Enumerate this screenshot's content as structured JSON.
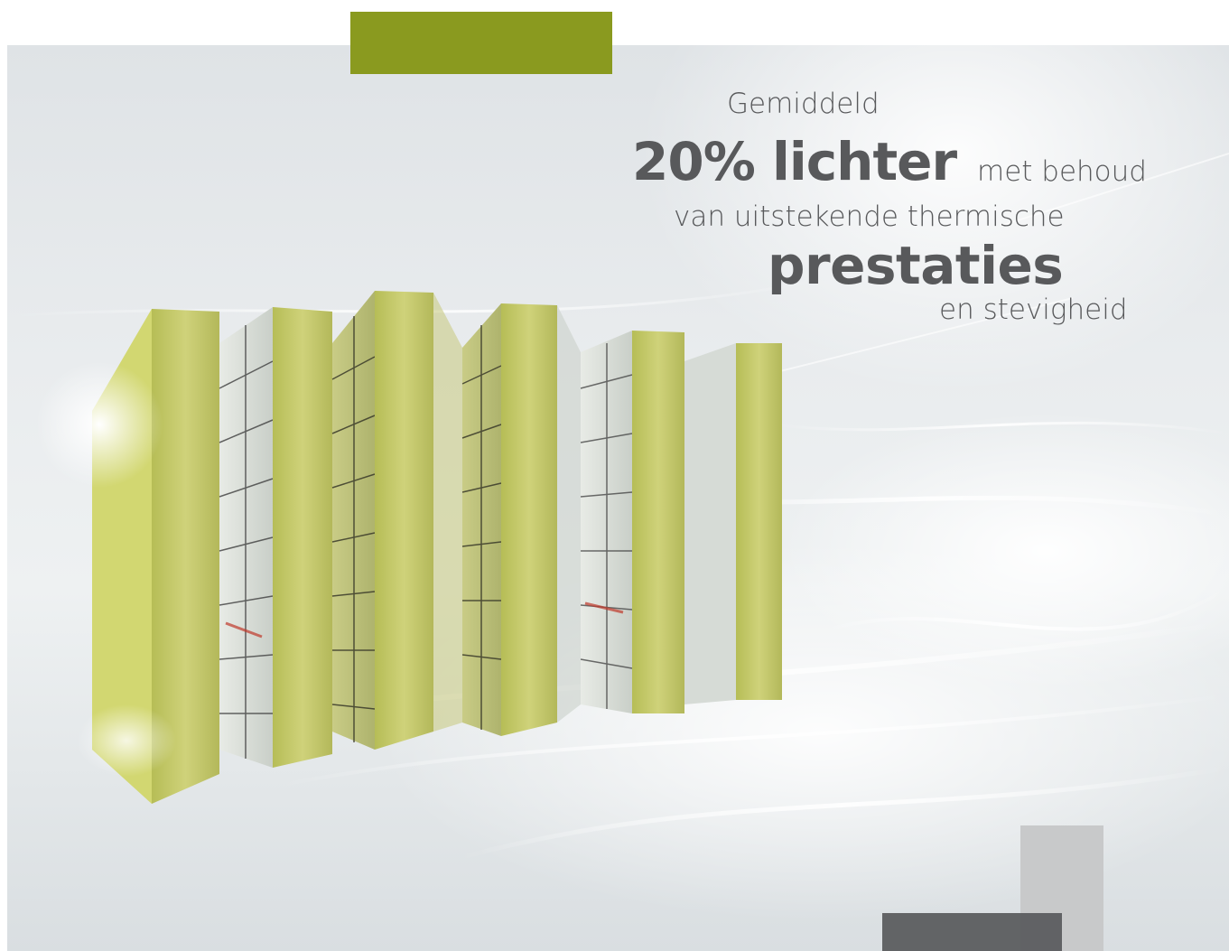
{
  "headline": {
    "line1": "Gemiddeld",
    "line2_bold": "20% lichter",
    "line2_rest": "met behoud",
    "line3": "van uitstekende thermische",
    "line4_bold": "prestaties",
    "line5": "en stevigheid"
  },
  "colors": {
    "accent_green": "#8a9a1f",
    "text_grey": "#58595b",
    "board_green": "#c3c86a",
    "accent_grey_light": "#c8c9ca",
    "accent_grey_dark": "#5c5d5f"
  },
  "product_image": {
    "icon": "insulation-boards-illustration"
  }
}
